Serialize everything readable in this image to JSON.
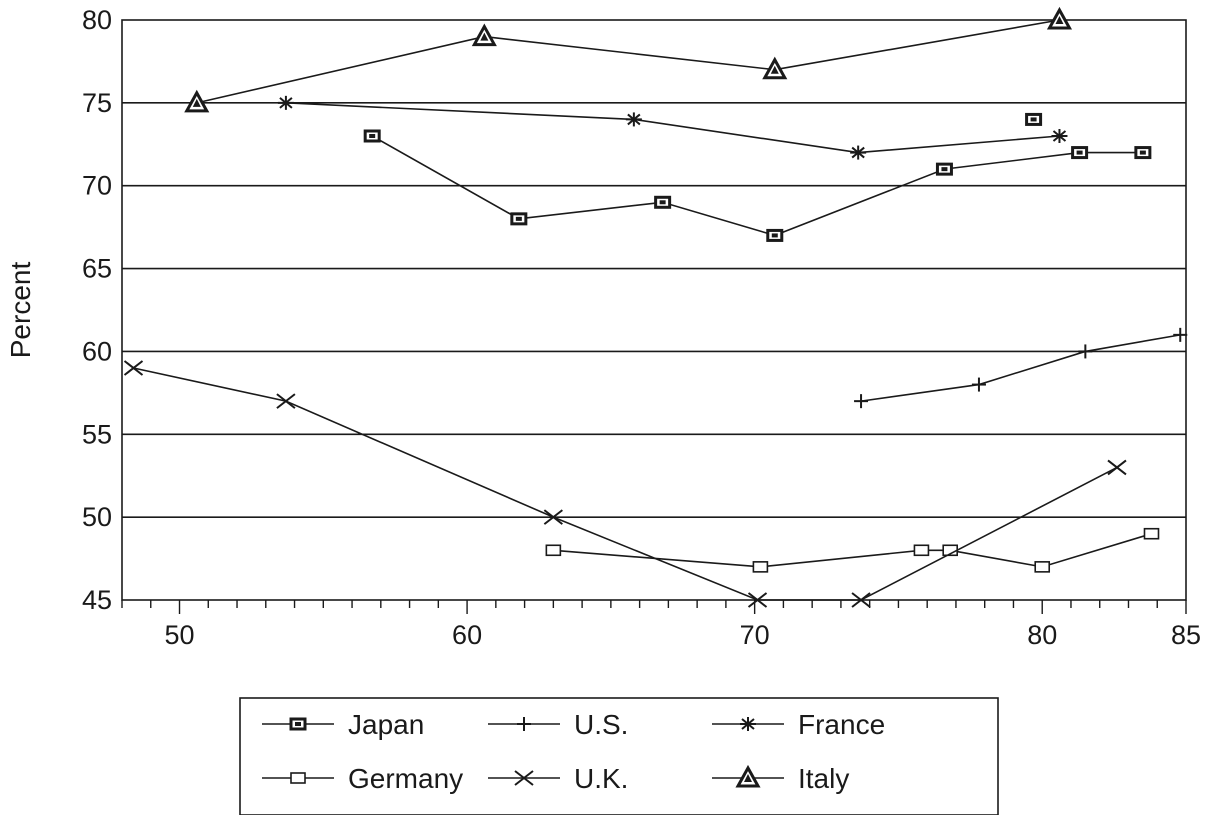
{
  "chart_data": {
    "type": "line",
    "title": "",
    "xlabel": "",
    "ylabel": "Percent",
    "xlim": [
      48,
      85
    ],
    "ylim": [
      45,
      80
    ],
    "x_ticks": [
      50,
      60,
      70,
      80,
      85
    ],
    "y_ticks": [
      45,
      50,
      55,
      60,
      65,
      70,
      75,
      80
    ],
    "grid": "horizontal",
    "legend_position": "bottom",
    "series": [
      {
        "name": "Japan",
        "marker": "filled-square",
        "segments": [
          [
            [
              56.7,
              73
            ],
            [
              61.8,
              68
            ],
            [
              66.8,
              69
            ],
            [
              70.7,
              67
            ],
            [
              76.6,
              71
            ],
            [
              81.3,
              72
            ],
            [
              83.5,
              72
            ]
          ],
          [
            [
              79.7,
              74
            ]
          ]
        ]
      },
      {
        "name": "U.S.",
        "marker": "plus",
        "segments": [
          [
            [
              73.7,
              57
            ],
            [
              77.8,
              58
            ],
            [
              81.5,
              60
            ],
            [
              84.8,
              61
            ]
          ]
        ]
      },
      {
        "name": "France",
        "marker": "asterisk",
        "segments": [
          [
            [
              53.7,
              75
            ],
            [
              65.8,
              74
            ],
            [
              73.6,
              72
            ],
            [
              80.6,
              73
            ]
          ]
        ]
      },
      {
        "name": "Germany",
        "marker": "open-square",
        "segments": [
          [
            [
              63,
              48
            ],
            [
              70.2,
              47
            ],
            [
              75.8,
              48
            ],
            [
              76.8,
              48
            ],
            [
              80,
              47
            ],
            [
              83.8,
              49
            ]
          ]
        ]
      },
      {
        "name": "U.K.",
        "marker": "x",
        "segments": [
          [
            [
              48.4,
              59
            ],
            [
              53.7,
              57
            ],
            [
              63,
              50
            ],
            [
              70.1,
              45
            ],
            [
              73.7,
              45
            ],
            [
              82.6,
              53
            ]
          ]
        ]
      },
      {
        "name": "Italy",
        "marker": "triangle",
        "segments": [
          [
            [
              50.6,
              75
            ],
            [
              60.6,
              79
            ],
            [
              70.7,
              77
            ],
            [
              80.6,
              80
            ]
          ]
        ]
      }
    ]
  }
}
